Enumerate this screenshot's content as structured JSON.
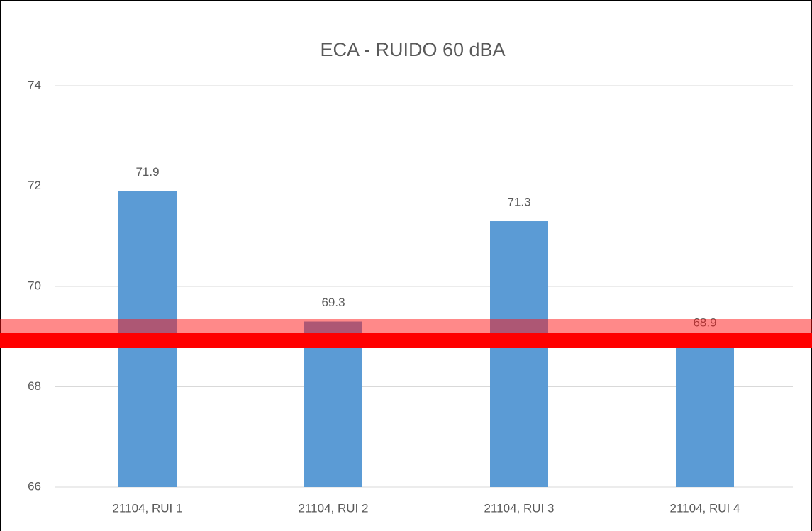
{
  "chart_data": {
    "type": "bar",
    "title": "ECA - RUIDO 60 dBA",
    "categories": [
      "21104, RUI 1",
      "21104, RUI 2",
      "21104, RUI 3",
      "21104, RUI 4"
    ],
    "values": [
      71.9,
      69.3,
      71.3,
      68.9
    ],
    "color": "#5b9bd5",
    "ylim": [
      66,
      74
    ],
    "yticks": [
      66,
      68,
      70,
      72,
      74
    ],
    "grid": true
  }
}
